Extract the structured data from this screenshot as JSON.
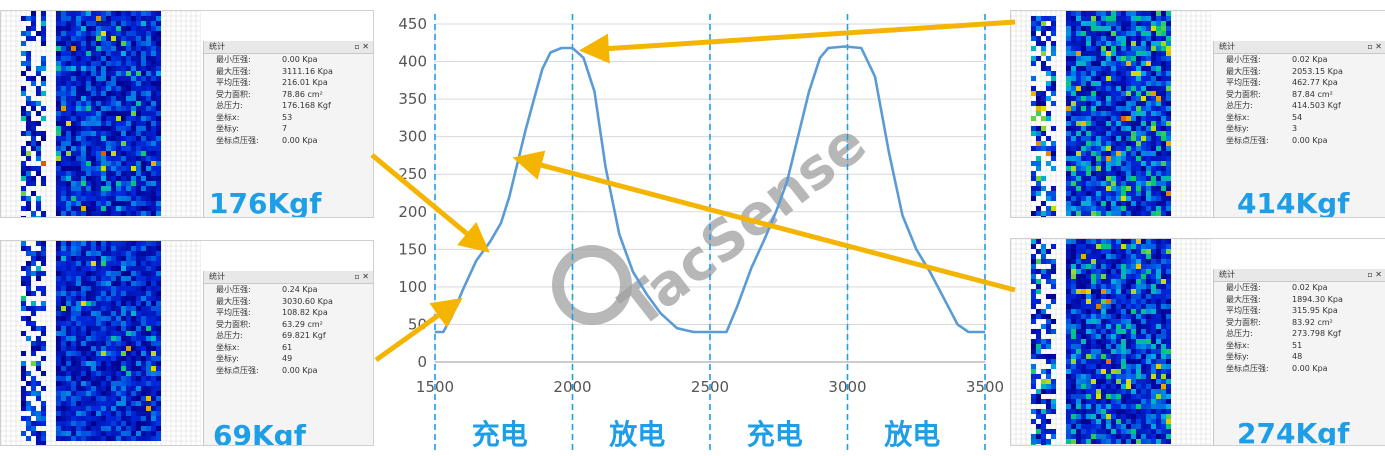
{
  "chart_data": {
    "type": "line",
    "title": "",
    "xlabel": "",
    "ylabel": "",
    "xlim": [
      1500,
      3500
    ],
    "ylim": [
      0,
      450
    ],
    "xticks": [
      "1500",
      "2000",
      "2500",
      "3000",
      "3500"
    ],
    "yticks": [
      "0",
      "50",
      "100",
      "150",
      "200",
      "250",
      "300",
      "350",
      "400",
      "450"
    ],
    "grid": true,
    "series": [
      {
        "name": "",
        "color": "#5b9bd5",
        "points": [
          [
            1500,
            40
          ],
          [
            1530,
            40
          ],
          [
            1560,
            60
          ],
          [
            1600,
            95
          ],
          [
            1650,
            135
          ],
          [
            1700,
            160
          ],
          [
            1740,
            185
          ],
          [
            1770,
            220
          ],
          [
            1800,
            265
          ],
          [
            1830,
            310
          ],
          [
            1860,
            350
          ],
          [
            1890,
            390
          ],
          [
            1920,
            412
          ],
          [
            1960,
            418
          ],
          [
            2000,
            418
          ],
          [
            2040,
            405
          ],
          [
            2080,
            360
          ],
          [
            2120,
            260
          ],
          [
            2170,
            170
          ],
          [
            2220,
            120
          ],
          [
            2270,
            90
          ],
          [
            2320,
            65
          ],
          [
            2380,
            45
          ],
          [
            2440,
            40
          ],
          [
            2500,
            40
          ],
          [
            2560,
            40
          ],
          [
            2600,
            75
          ],
          [
            2650,
            125
          ],
          [
            2700,
            165
          ],
          [
            2740,
            200
          ],
          [
            2780,
            240
          ],
          [
            2820,
            300
          ],
          [
            2860,
            360
          ],
          [
            2900,
            405
          ],
          [
            2930,
            418
          ],
          [
            2990,
            420
          ],
          [
            3050,
            418
          ],
          [
            3100,
            380
          ],
          [
            3150,
            280
          ],
          [
            3200,
            195
          ],
          [
            3250,
            150
          ],
          [
            3300,
            120
          ],
          [
            3350,
            85
          ],
          [
            3400,
            50
          ],
          [
            3440,
            40
          ],
          [
            3500,
            40
          ]
        ]
      }
    ],
    "phase_dividers": [
      1500,
      2000,
      2500,
      3000,
      3500
    ],
    "phase_labels": [
      "充电",
      "放电",
      "充电",
      "放电"
    ],
    "watermark": "TacSense",
    "callouts": [
      {
        "label": "176Kgf",
        "point": [
          1700,
          160
        ]
      },
      {
        "label": "69Kgf",
        "point": [
          1600,
          90
        ]
      },
      {
        "label": "414Kgf",
        "point": [
          2000,
          418
        ]
      },
      {
        "label": "274Kgf",
        "point": [
          1830,
          275
        ]
      }
    ]
  },
  "accent_color": "#1e9ee6",
  "arrow_color": "#f5b400",
  "panels": [
    {
      "name": "panel-176",
      "title": "统计",
      "value_label": "176Kgf",
      "rows": [
        {
          "k": "最小压强:",
          "v": "0.00 Kpa"
        },
        {
          "k": "最大压强:",
          "v": "3111.16 Kpa"
        },
        {
          "k": "平均压强:",
          "v": "216.01 Kpa"
        },
        {
          "k": "受力面积:",
          "v": "78.86 cm²"
        },
        {
          "k": "总压力:",
          "v": "176.168 Kgf"
        },
        {
          "k": "坐标x:",
          "v": "53"
        },
        {
          "k": "坐标y:",
          "v": "7"
        },
        {
          "k": "坐标点压强:",
          "v": "0.00 Kpa"
        }
      ]
    },
    {
      "name": "panel-69",
      "title": "统计",
      "value_label": "69Kgf",
      "rows": [
        {
          "k": "最小压强:",
          "v": "0.24 Kpa"
        },
        {
          "k": "最大压强:",
          "v": "3030.60 Kpa"
        },
        {
          "k": "平均压强:",
          "v": "108.82 Kpa"
        },
        {
          "k": "受力面积:",
          "v": "63.29 cm²"
        },
        {
          "k": "总压力:",
          "v": "69.821 Kgf"
        },
        {
          "k": "坐标x:",
          "v": "61"
        },
        {
          "k": "坐标y:",
          "v": "49"
        },
        {
          "k": "坐标点压强:",
          "v": "0.00 Kpa"
        }
      ]
    },
    {
      "name": "panel-414",
      "title": "统计",
      "value_label": "414Kgf",
      "rows": [
        {
          "k": "最小压强:",
          "v": "0.02 Kpa"
        },
        {
          "k": "最大压强:",
          "v": "2053.15 Kpa"
        },
        {
          "k": "平均压强:",
          "v": "462.77 Kpa"
        },
        {
          "k": "受力面积:",
          "v": "87.84 cm²"
        },
        {
          "k": "总压力:",
          "v": "414.503 Kgf"
        },
        {
          "k": "坐标x:",
          "v": "54"
        },
        {
          "k": "坐标y:",
          "v": "3"
        },
        {
          "k": "坐标点压强:",
          "v": "0.00 Kpa"
        }
      ]
    },
    {
      "name": "panel-274",
      "title": "统计",
      "value_label": "274Kgf",
      "rows": [
        {
          "k": "最小压强:",
          "v": "0.02 Kpa"
        },
        {
          "k": "最大压强:",
          "v": "1894.30 Kpa"
        },
        {
          "k": "平均压强:",
          "v": "315.95 Kpa"
        },
        {
          "k": "受力面积:",
          "v": "83.92 cm²"
        },
        {
          "k": "总压力:",
          "v": "273.798 Kgf"
        },
        {
          "k": "坐标x:",
          "v": "51"
        },
        {
          "k": "坐标y:",
          "v": "48"
        },
        {
          "k": "坐标点压强:",
          "v": "0.00 Kpa"
        }
      ]
    }
  ]
}
